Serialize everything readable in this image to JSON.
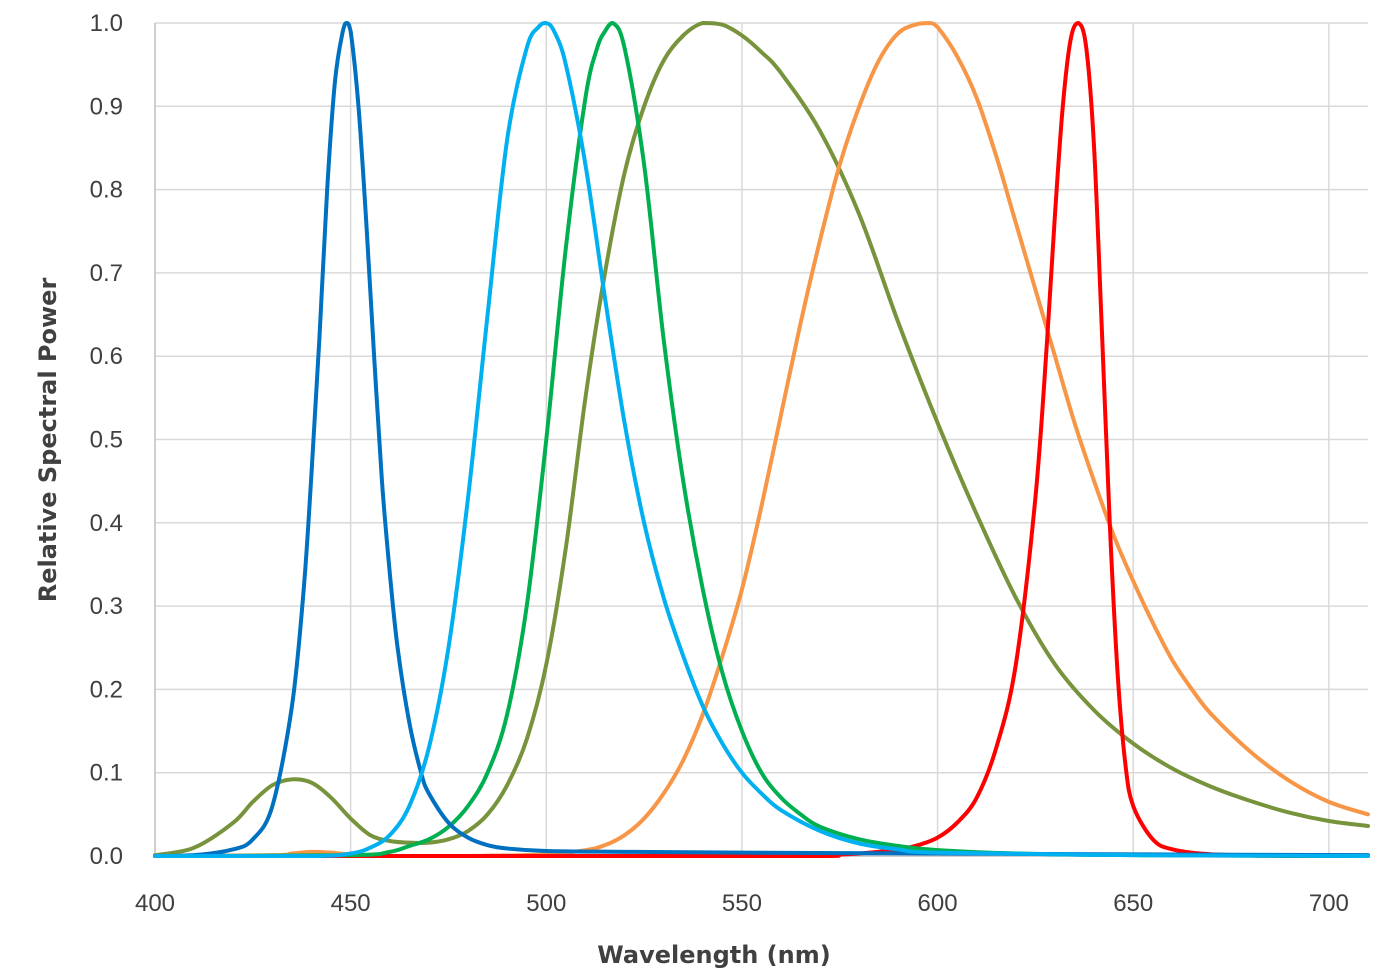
{
  "chart_data": {
    "type": "line",
    "title": "",
    "xlabel": "Wavelength (nm)",
    "ylabel": "Relative Spectral Power",
    "xlim": [
      400,
      710
    ],
    "ylim": [
      0,
      1.0
    ],
    "x_ticks": [
      400,
      450,
      500,
      550,
      600,
      650,
      700
    ],
    "y_ticks": [
      0.0,
      0.1,
      0.2,
      0.3,
      0.4,
      0.5,
      0.6,
      0.7,
      0.8,
      0.9,
      1.0
    ],
    "y_tick_labels": [
      "0.0",
      "0.1",
      "0.2",
      "0.3",
      "0.4",
      "0.5",
      "0.6",
      "0.7",
      "0.8",
      "0.9",
      "1.0"
    ],
    "grid": true,
    "legend": "none",
    "series": [
      {
        "color": "#0070c0",
        "x": [
          400,
          410,
          420,
          425,
          430,
          435,
          438,
          440,
          442,
          444,
          446,
          448,
          449,
          450,
          452,
          454,
          456,
          458,
          460,
          462,
          465,
          468,
          470,
          475,
          480,
          485,
          490,
          500,
          520,
          550,
          600,
          650,
          710
        ],
        "y": [
          0.0,
          0.001,
          0.008,
          0.02,
          0.06,
          0.18,
          0.32,
          0.46,
          0.62,
          0.8,
          0.93,
          0.99,
          1.0,
          0.99,
          0.9,
          0.76,
          0.6,
          0.45,
          0.34,
          0.25,
          0.16,
          0.1,
          0.075,
          0.04,
          0.022,
          0.013,
          0.009,
          0.006,
          0.005,
          0.004,
          0.003,
          0.002,
          0.001
        ]
      },
      {
        "color": "#00b0f0",
        "x": [
          400,
          440,
          450,
          455,
          460,
          465,
          470,
          475,
          480,
          485,
          490,
          495,
          498,
          500,
          502,
          505,
          510,
          515,
          520,
          525,
          530,
          535,
          540,
          545,
          550,
          555,
          560,
          570,
          580,
          590,
          600,
          650,
          710
        ],
        "y": [
          0.0,
          0.0,
          0.003,
          0.01,
          0.025,
          0.06,
          0.13,
          0.25,
          0.43,
          0.65,
          0.86,
          0.97,
          0.995,
          1.0,
          0.99,
          0.95,
          0.83,
          0.67,
          0.52,
          0.4,
          0.31,
          0.24,
          0.18,
          0.135,
          0.1,
          0.075,
          0.055,
          0.03,
          0.015,
          0.008,
          0.004,
          0.001,
          0.0
        ]
      },
      {
        "color": "#00b050",
        "x": [
          400,
          450,
          460,
          465,
          470,
          475,
          480,
          485,
          490,
          495,
          500,
          505,
          510,
          513,
          515,
          517,
          520,
          525,
          530,
          535,
          540,
          545,
          550,
          555,
          560,
          565,
          570,
          580,
          590,
          600,
          620,
          650,
          710
        ],
        "y": [
          0.0,
          0.001,
          0.005,
          0.012,
          0.02,
          0.035,
          0.06,
          0.1,
          0.17,
          0.3,
          0.5,
          0.73,
          0.91,
          0.97,
          0.99,
          1.0,
          0.97,
          0.83,
          0.62,
          0.45,
          0.32,
          0.22,
          0.15,
          0.1,
          0.07,
          0.05,
          0.035,
          0.02,
          0.012,
          0.007,
          0.003,
          0.001,
          0.0
        ]
      },
      {
        "color": "#77933c",
        "x": [
          400,
          410,
          420,
          425,
          430,
          435,
          440,
          445,
          450,
          455,
          460,
          465,
          470,
          475,
          480,
          485,
          490,
          495,
          500,
          505,
          510,
          515,
          520,
          525,
          530,
          535,
          540,
          545,
          550,
          555,
          560,
          570,
          580,
          590,
          600,
          610,
          620,
          630,
          640,
          650,
          660,
          670,
          680,
          690,
          700,
          710
        ],
        "y": [
          0.001,
          0.01,
          0.04,
          0.065,
          0.085,
          0.092,
          0.088,
          0.07,
          0.045,
          0.025,
          0.018,
          0.016,
          0.016,
          0.02,
          0.03,
          0.05,
          0.085,
          0.14,
          0.23,
          0.37,
          0.55,
          0.7,
          0.82,
          0.9,
          0.955,
          0.985,
          1.0,
          0.998,
          0.985,
          0.965,
          0.94,
          0.87,
          0.77,
          0.64,
          0.52,
          0.41,
          0.31,
          0.23,
          0.175,
          0.135,
          0.105,
          0.083,
          0.066,
          0.052,
          0.042,
          0.036
        ]
      },
      {
        "color": "#f79646",
        "x": [
          400,
          430,
          435,
          440,
          445,
          450,
          460,
          480,
          500,
          510,
          515,
          520,
          525,
          530,
          535,
          540,
          545,
          550,
          555,
          560,
          565,
          570,
          575,
          580,
          585,
          590,
          595,
          598,
          600,
          605,
          610,
          615,
          620,
          625,
          630,
          635,
          640,
          645,
          650,
          655,
          660,
          665,
          670,
          680,
          690,
          700,
          710
        ],
        "y": [
          0.0,
          0.001,
          0.003,
          0.005,
          0.004,
          0.002,
          0.0,
          0.0,
          0.002,
          0.007,
          0.013,
          0.025,
          0.045,
          0.075,
          0.115,
          0.17,
          0.24,
          0.32,
          0.42,
          0.53,
          0.64,
          0.74,
          0.83,
          0.9,
          0.955,
          0.988,
          0.999,
          1.0,
          0.995,
          0.96,
          0.91,
          0.84,
          0.76,
          0.68,
          0.6,
          0.52,
          0.45,
          0.385,
          0.33,
          0.28,
          0.235,
          0.2,
          0.17,
          0.125,
          0.09,
          0.065,
          0.05
        ]
      },
      {
        "color": "#ff0000",
        "x": [
          400,
          560,
          570,
          580,
          590,
          595,
          600,
          605,
          610,
          615,
          620,
          625,
          628,
          630,
          632,
          634,
          636,
          638,
          640,
          642,
          644,
          646,
          648,
          650,
          655,
          660,
          670,
          690,
          710
        ],
        "y": [
          0.0,
          0.0,
          0.001,
          0.003,
          0.008,
          0.013,
          0.022,
          0.04,
          0.07,
          0.13,
          0.23,
          0.43,
          0.62,
          0.77,
          0.9,
          0.98,
          1.0,
          0.97,
          0.85,
          0.63,
          0.4,
          0.22,
          0.11,
          0.06,
          0.02,
          0.008,
          0.002,
          0.0,
          0.0
        ]
      }
    ]
  }
}
